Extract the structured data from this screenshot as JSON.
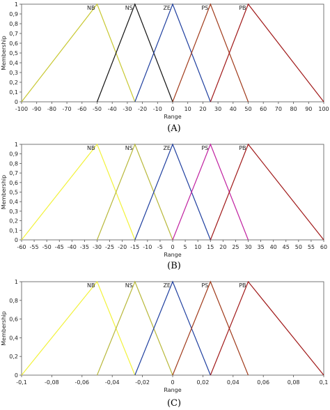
{
  "chart_data": [
    {
      "type": "line",
      "caption": "(A)",
      "xlabel": "Range",
      "ylabel": "Membership",
      "xlim": [
        -100,
        100
      ],
      "ylim": [
        0,
        1
      ],
      "xticks": [
        -100,
        -90,
        -80,
        -70,
        -60,
        -50,
        -40,
        -30,
        -20,
        -10,
        0,
        10,
        20,
        30,
        40,
        50,
        60,
        70,
        80,
        90,
        100
      ],
      "xtick_labels": [
        "-100",
        "-90",
        "-80",
        "-70",
        "-60",
        "-50",
        "-40",
        "-30",
        "-20",
        "-10",
        "0",
        "10",
        "20",
        "30",
        "40",
        "50",
        "60",
        "70",
        "80",
        "90",
        "100"
      ],
      "yticks": [
        0,
        0.1,
        0.2,
        0.3,
        0.4,
        0.5,
        0.6,
        0.7,
        0.8,
        0.9,
        1
      ],
      "ytick_labels": [
        "0",
        "0,1",
        "0,2",
        "0,3",
        "0,4",
        "0,5",
        "0,6",
        "0,7",
        "0,8",
        "0,9",
        "1"
      ],
      "grid": false,
      "series": [
        {
          "name": "NB",
          "color": "#c8c832",
          "points": [
            [
              -100,
              0
            ],
            [
              -50,
              1
            ],
            [
              -25,
              0
            ]
          ]
        },
        {
          "name": "NS",
          "color": "#111111",
          "points": [
            [
              -50,
              0
            ],
            [
              -25,
              1
            ],
            [
              0,
              0
            ]
          ]
        },
        {
          "name": "ZE",
          "color": "#1f3f9f",
          "points": [
            [
              -25,
              0
            ],
            [
              0,
              1
            ],
            [
              25,
              0
            ]
          ]
        },
        {
          "name": "PS",
          "color": "#a03a1a",
          "points": [
            [
              0,
              0
            ],
            [
              25,
              1
            ],
            [
              50,
              0
            ]
          ]
        },
        {
          "name": "PB",
          "color": "#a01818",
          "points": [
            [
              25,
              0
            ],
            [
              50,
              1
            ],
            [
              100,
              0
            ]
          ]
        }
      ]
    },
    {
      "type": "line",
      "caption": "(B)",
      "xlabel": "Range",
      "ylabel": "Membership",
      "xlim": [
        -60,
        60
      ],
      "ylim": [
        0,
        1
      ],
      "xticks": [
        -60,
        -55,
        -50,
        -45,
        -40,
        -35,
        -30,
        -25,
        -20,
        -15,
        -10,
        -5,
        0,
        5,
        10,
        15,
        20,
        25,
        30,
        35,
        40,
        45,
        50,
        55,
        60
      ],
      "xtick_labels": [
        "-60",
        "-55",
        "-50",
        "-45",
        "-40",
        "-35",
        "-30",
        "-25",
        "-20",
        "-15",
        "-10",
        "-5",
        "0",
        "5",
        "10",
        "15",
        "20",
        "25",
        "30",
        "35",
        "40",
        "45",
        "50",
        "55",
        "60"
      ],
      "yticks": [
        0,
        0.1,
        0.2,
        0.3,
        0.4,
        0.5,
        0.6,
        0.7,
        0.8,
        0.9,
        1
      ],
      "ytick_labels": [
        "0",
        "0,1",
        "0,2",
        "0,3",
        "0,4",
        "0,5",
        "0,6",
        "0,7",
        "0,8",
        "0,9",
        "1"
      ],
      "grid": false,
      "series": [
        {
          "name": "NB",
          "color": "#f2f23a",
          "points": [
            [
              -60,
              0
            ],
            [
              -30,
              1
            ],
            [
              -15,
              0
            ]
          ]
        },
        {
          "name": "NS",
          "color": "#b8b83a",
          "points": [
            [
              -30,
              0
            ],
            [
              -15,
              1
            ],
            [
              0,
              0
            ]
          ]
        },
        {
          "name": "ZE",
          "color": "#1f3f9f",
          "points": [
            [
              -15,
              0
            ],
            [
              0,
              1
            ],
            [
              15,
              0
            ]
          ]
        },
        {
          "name": "PS",
          "color": "#c020a0",
          "points": [
            [
              0,
              0
            ],
            [
              15,
              1
            ],
            [
              30,
              0
            ]
          ]
        },
        {
          "name": "PB",
          "color": "#a01818",
          "points": [
            [
              15,
              0
            ],
            [
              30,
              1
            ],
            [
              60,
              0
            ]
          ]
        }
      ]
    },
    {
      "type": "line",
      "caption": "(C)",
      "xlabel": "Range",
      "ylabel": "Membership",
      "xlim": [
        -0.1,
        0.1
      ],
      "ylim": [
        0,
        1
      ],
      "xticks": [
        -0.1,
        -0.08,
        -0.06,
        -0.04,
        -0.02,
        0,
        0.02,
        0.04,
        0.06,
        0.08,
        0.1
      ],
      "xtick_labels": [
        "-0,1",
        "-0,08",
        "-0,06",
        "-0,04",
        "-0,02",
        "0",
        "0,02",
        "0,04",
        "0,06",
        "0,08",
        "0,1"
      ],
      "yticks": [
        0,
        0.2,
        0.4,
        0.6,
        0.8,
        1
      ],
      "ytick_labels": [
        "0",
        "0,2",
        "0,4",
        "0,6",
        "0,8",
        "1"
      ],
      "grid": false,
      "series": [
        {
          "name": "NB",
          "color": "#f2f23a",
          "points": [
            [
              -0.1,
              0
            ],
            [
              -0.05,
              1
            ],
            [
              -0.025,
              0
            ]
          ]
        },
        {
          "name": "NS",
          "color": "#b8b83a",
          "points": [
            [
              -0.05,
              0
            ],
            [
              -0.025,
              1
            ],
            [
              0,
              0
            ]
          ]
        },
        {
          "name": "ZE",
          "color": "#1f3f9f",
          "points": [
            [
              -0.025,
              0
            ],
            [
              0,
              1
            ],
            [
              0.025,
              0
            ]
          ]
        },
        {
          "name": "PS",
          "color": "#a03a1a",
          "points": [
            [
              0,
              0
            ],
            [
              0.025,
              1
            ],
            [
              0.05,
              0
            ]
          ]
        },
        {
          "name": "PB",
          "color": "#a01818",
          "points": [
            [
              0.025,
              0
            ],
            [
              0.05,
              1
            ],
            [
              0.1,
              0
            ]
          ]
        }
      ]
    }
  ]
}
